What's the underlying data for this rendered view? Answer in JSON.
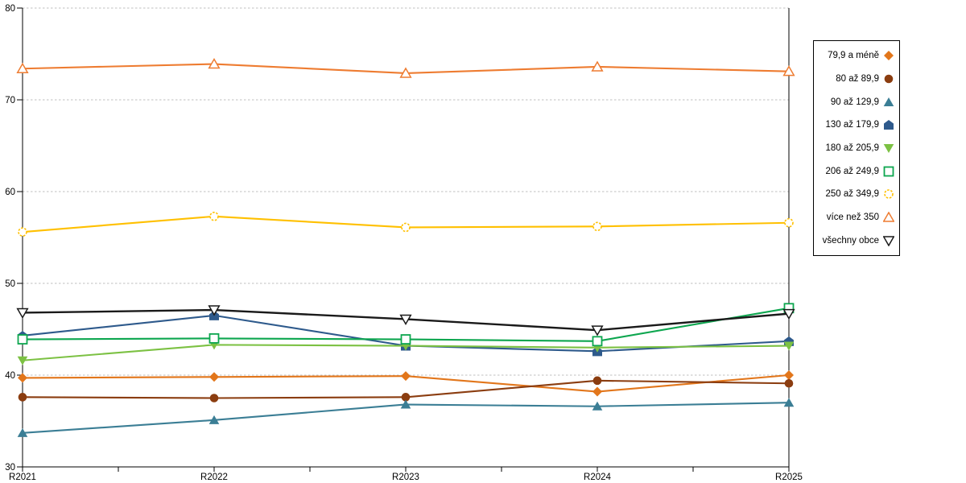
{
  "chart_data": {
    "type": "line",
    "title": "",
    "x_categories": [
      "R2021",
      "R2022",
      "R2023",
      "R2024",
      "R2025"
    ],
    "y_axis": {
      "min": 30,
      "max": 80,
      "tick_step": 10,
      "tick_labels": [
        "30",
        "40",
        "50",
        "60",
        "70",
        "80"
      ],
      "gridline_values": [
        40,
        50,
        60,
        70,
        80
      ]
    },
    "x_axis": {
      "minor_ticks_at_midpoints": true
    },
    "grid": {
      "style": "dashed",
      "color": "#BFBFBF"
    },
    "axis_color": "#000000",
    "background_color": "#FFFFFF",
    "legend": {
      "position": "right",
      "border_color": "#000000",
      "background": "#FFFFFF"
    },
    "series": [
      {
        "name": "79,9 a méně",
        "marker": "diamond",
        "color": "#E2761B",
        "values": [
          39.7,
          39.8,
          39.9,
          38.2,
          40.0
        ]
      },
      {
        "name": "80 až 89,9",
        "marker": "circle",
        "color": "#8B3D10",
        "values": [
          37.6,
          37.5,
          37.6,
          39.4,
          39.1
        ]
      },
      {
        "name": "90 až 129,9",
        "marker": "triangle-up",
        "color": "#3B7E95",
        "values": [
          33.7,
          35.1,
          36.8,
          36.6,
          37.0
        ]
      },
      {
        "name": "130 až 179,9",
        "marker": "pentagon",
        "color": "#2E5A8C",
        "values": [
          44.3,
          46.5,
          43.2,
          42.6,
          43.7
        ]
      },
      {
        "name": "180 až 205,9",
        "marker": "triangle-down",
        "color": "#7CC143",
        "values": [
          41.6,
          43.3,
          43.2,
          43.0,
          43.2
        ]
      },
      {
        "name": "206 až 249,9",
        "marker": "square-open",
        "color": "#0DA64F",
        "values": [
          43.9,
          44.0,
          43.9,
          43.7,
          47.3
        ]
      },
      {
        "name": "250 až 349,9",
        "marker": "circle-open-dashed",
        "color": "#FFC000",
        "values": [
          55.6,
          57.3,
          56.1,
          56.2,
          56.6
        ]
      },
      {
        "name": "více než 350",
        "marker": "triangle-up-open",
        "color": "#EE7C31",
        "values": [
          73.4,
          73.9,
          72.9,
          73.6,
          73.1
        ]
      },
      {
        "name": "všechny obce",
        "marker": "triangle-down-open",
        "color": "#1A1A1A",
        "values": [
          46.8,
          47.1,
          46.1,
          44.9,
          46.7
        ]
      }
    ]
  }
}
